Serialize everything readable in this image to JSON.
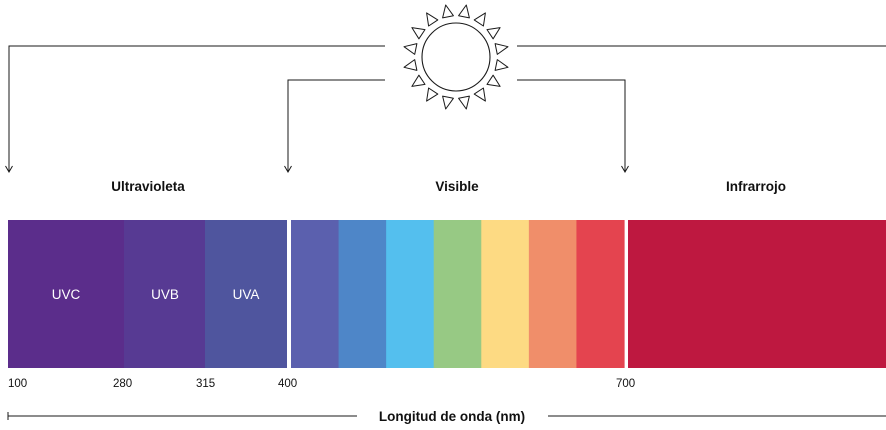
{
  "categories": {
    "uv": "Ultravioleta",
    "visible": "Visible",
    "ir": "Infrarrojo"
  },
  "uv_bands": {
    "uvc": "UVC",
    "uvb": "UVB",
    "uva": "UVA"
  },
  "ticks": {
    "t100": "100",
    "t280": "280",
    "t315": "315",
    "t400": "400",
    "t700": "700"
  },
  "axis_title": "Longitud de onda (nm)",
  "colors": {
    "uvc": "#5b2d8b",
    "uvb": "#573a93",
    "uva": "#4f559e",
    "visible_bands": [
      "#5b60ae",
      "#4e86c8",
      "#54bfee",
      "#97c984",
      "#fdda83",
      "#f08e6a",
      "#e4444f"
    ],
    "infrared": "#be1840",
    "line": "#1a1a1a"
  }
}
